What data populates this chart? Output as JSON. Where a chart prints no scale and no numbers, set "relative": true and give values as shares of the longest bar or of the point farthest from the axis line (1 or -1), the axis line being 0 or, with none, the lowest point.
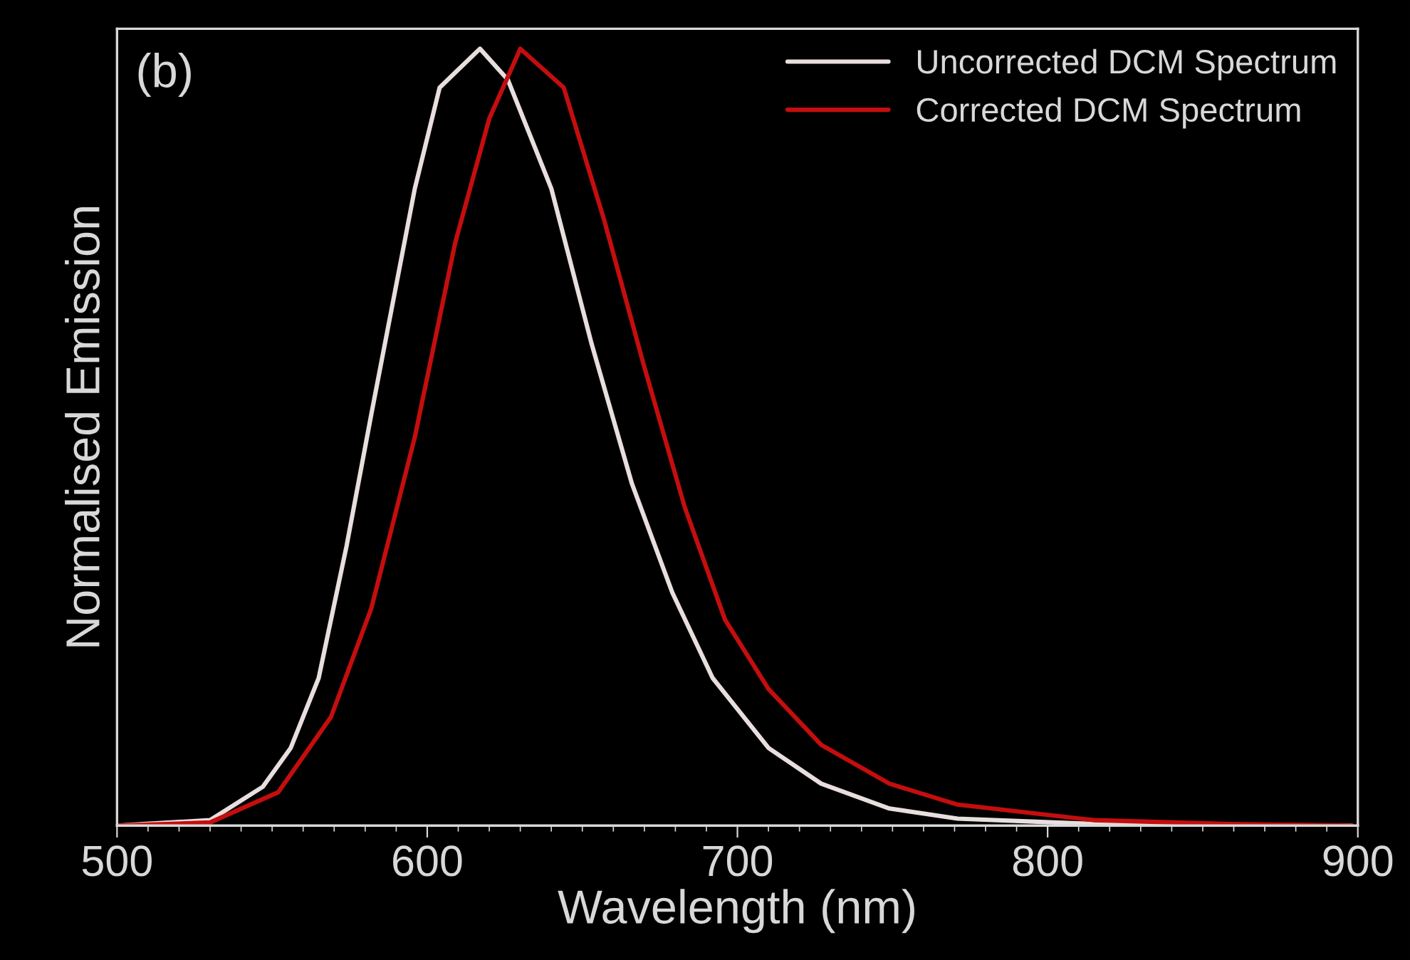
{
  "chart_data": {
    "type": "line",
    "xlabel": "Wavelength (nm)",
    "ylabel": "Normalised Emission",
    "annotations": [
      "(b)"
    ],
    "relative": true,
    "xlim": [
      500,
      900
    ],
    "xticks": [
      500,
      600,
      700,
      800,
      900
    ],
    "grid": false,
    "legend": "top right",
    "marker": "none",
    "line_style": "solid",
    "series": [
      {
        "name": "Uncorrected DCM Spectrum",
        "color": "#e8dede",
        "x": [
          500,
          530,
          547,
          556,
          565,
          574,
          582,
          596,
          604,
          617,
          626,
          640,
          653,
          666,
          679,
          692,
          710,
          727,
          749,
          771,
          815,
          898
        ],
        "values": [
          0,
          0.007,
          0.05,
          0.1,
          0.19,
          0.36,
          0.53,
          0.82,
          0.95,
          1.0,
          0.96,
          0.82,
          0.62,
          0.44,
          0.3,
          0.19,
          0.1,
          0.054,
          0.022,
          0.009,
          0.002,
          0
        ]
      },
      {
        "name": "Corrected DCM Spectrum",
        "color": "#c40e0e",
        "x": [
          500,
          530,
          552,
          569,
          582,
          596,
          609,
          620,
          630,
          644,
          657,
          670,
          683,
          696,
          710,
          727,
          749,
          771,
          815,
          859,
          898
        ],
        "values": [
          0,
          0.004,
          0.043,
          0.14,
          0.28,
          0.5,
          0.75,
          0.91,
          1.0,
          0.95,
          0.78,
          0.59,
          0.41,
          0.265,
          0.176,
          0.104,
          0.054,
          0.027,
          0.007,
          0.002,
          0
        ]
      }
    ]
  }
}
